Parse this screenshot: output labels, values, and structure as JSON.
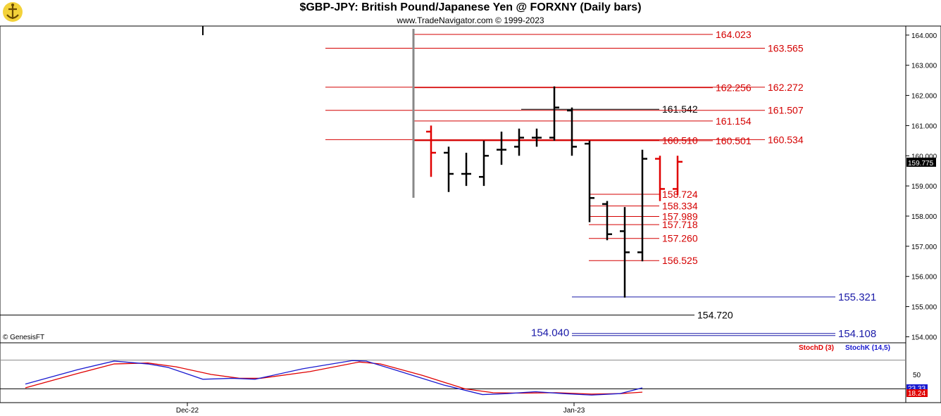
{
  "header": {
    "title": "$GBP-JPY:  British Pound/Japanese Yen @ FORXNY  (Daily bars)",
    "subtitle": "www.TradeNavigator.com © 1999-2023",
    "logo_icon": "anchor-logo-icon"
  },
  "copyright": "© GenesisFT",
  "colors": {
    "bull": "#000000",
    "bear": "#e00000",
    "red_level": "#d40000",
    "blue_level": "#1a1aa8",
    "black_level": "#000000",
    "stochK": "#1a1ad0",
    "stochD": "#e00000"
  },
  "chart_data": [
    {
      "type": "bar",
      "subtype": "ohlc",
      "title": "$GBP-JPY:  British Pound/Japanese Yen @ FORXNY  (Daily bars)",
      "ylim": [
        153.8,
        164.3
      ],
      "y_ticks": [
        "154.000",
        "155.000",
        "156.000",
        "157.000",
        "158.000",
        "159.000",
        "160.000",
        "161.000",
        "162.000",
        "163.000",
        "164.000"
      ],
      "x_tick_labels": [
        "Dec-22",
        "Jan-23"
      ],
      "last_price": "159.775",
      "bars": [
        {
          "o": 160.8,
          "h": 161.0,
          "l": 159.3,
          "c": 160.1,
          "color": "red"
        },
        {
          "o": 160.1,
          "h": 160.3,
          "l": 158.8,
          "c": 159.4,
          "color": "black"
        },
        {
          "o": 159.4,
          "h": 160.1,
          "l": 159.0,
          "c": 159.4,
          "color": "black"
        },
        {
          "o": 159.3,
          "h": 160.5,
          "l": 159.0,
          "c": 160.0,
          "color": "black"
        },
        {
          "o": 160.2,
          "h": 160.8,
          "l": 159.7,
          "c": 160.2,
          "color": "black"
        },
        {
          "o": 160.3,
          "h": 160.9,
          "l": 160.0,
          "c": 160.6,
          "color": "black"
        },
        {
          "o": 160.6,
          "h": 160.9,
          "l": 160.3,
          "c": 160.6,
          "color": "black"
        },
        {
          "o": 160.6,
          "h": 162.3,
          "l": 160.5,
          "c": 161.6,
          "color": "black"
        },
        {
          "o": 161.5,
          "h": 161.6,
          "l": 160.0,
          "c": 160.3,
          "color": "black"
        },
        {
          "o": 160.4,
          "h": 160.5,
          "l": 157.8,
          "c": 158.6,
          "color": "black"
        },
        {
          "o": 158.4,
          "h": 158.5,
          "l": 157.2,
          "c": 157.4,
          "color": "black"
        },
        {
          "o": 157.5,
          "h": 158.3,
          "l": 155.3,
          "c": 156.8,
          "color": "black"
        },
        {
          "o": 156.8,
          "h": 160.2,
          "l": 156.5,
          "c": 159.9,
          "color": "black"
        },
        {
          "o": 159.9,
          "h": 160.0,
          "l": 158.5,
          "c": 158.9,
          "color": "red"
        },
        {
          "o": 158.9,
          "h": 160.0,
          "l": 158.7,
          "c": 159.8,
          "color": "red"
        }
      ],
      "levels": [
        {
          "value": 164.023,
          "label": "164.023",
          "color": "red"
        },
        {
          "value": 163.565,
          "label": "163.565",
          "color": "red"
        },
        {
          "value": 162.256,
          "label": "162.256",
          "color": "red"
        },
        {
          "value": 162.272,
          "label": "162.272",
          "color": "red"
        },
        {
          "value": 161.542,
          "label": "161.542",
          "color": "black"
        },
        {
          "value": 161.507,
          "label": "161.507",
          "color": "red"
        },
        {
          "value": 161.154,
          "label": "161.154",
          "color": "red"
        },
        {
          "value": 160.51,
          "label": "160.510",
          "color": "red"
        },
        {
          "value": 160.501,
          "label": "160.501",
          "color": "red"
        },
        {
          "value": 160.534,
          "label": "160.534",
          "color": "red"
        },
        {
          "value": 158.724,
          "label": "158.724",
          "color": "red"
        },
        {
          "value": 158.334,
          "label": "158.334",
          "color": "red"
        },
        {
          "value": 157.989,
          "label": "157.989",
          "color": "red"
        },
        {
          "value": 157.718,
          "label": "157.718",
          "color": "red"
        },
        {
          "value": 157.26,
          "label": "157.260",
          "color": "red"
        },
        {
          "value": 156.525,
          "label": "156.525",
          "color": "red"
        },
        {
          "value": 155.321,
          "label": "155.321",
          "color": "blue"
        },
        {
          "value": 154.72,
          "label": "154.720",
          "color": "black"
        },
        {
          "value": 154.04,
          "label": "154.040",
          "color": "blue"
        },
        {
          "value": 154.108,
          "label": "154.108",
          "color": "blue"
        }
      ]
    },
    {
      "type": "line",
      "title": "StochD (3)  StochK (14,5)",
      "ylim": [
        0,
        100
      ],
      "y_ticks": [
        "50"
      ],
      "series": [
        {
          "name": "StochD (3)",
          "color": "#e00000",
          "last": "18.24"
        },
        {
          "name": "StochK (14,5)",
          "color": "#1a1ad0",
          "last": "23.33"
        }
      ]
    }
  ]
}
